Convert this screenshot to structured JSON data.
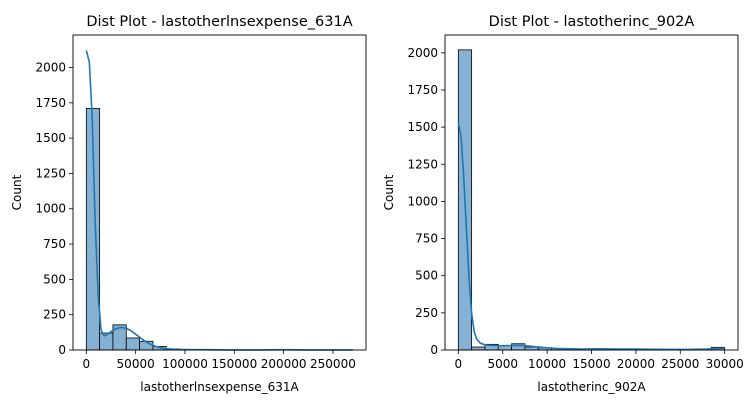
{
  "chart_data": [
    {
      "type": "histogram",
      "title": "Dist Plot - lastotherlnsexpense_631A",
      "xlabel": "lastotherlnsexpense_631A",
      "ylabel": "Count",
      "xlim": [
        -13500,
        283500
      ],
      "ylim": [
        0,
        2230
      ],
      "xticks": [
        0,
        50000,
        100000,
        150000,
        200000,
        250000
      ],
      "yticks": [
        0,
        250,
        500,
        750,
        1000,
        1250,
        1500,
        1750,
        2000
      ],
      "bins": [
        {
          "x0": 0,
          "x1": 13500,
          "count": 1710
        },
        {
          "x0": 13500,
          "x1": 27000,
          "count": 120
        },
        {
          "x0": 27000,
          "x1": 40500,
          "count": 178
        },
        {
          "x0": 40500,
          "x1": 54000,
          "count": 85
        },
        {
          "x0": 54000,
          "x1": 67500,
          "count": 62
        },
        {
          "x0": 67500,
          "x1": 81000,
          "count": 25
        },
        {
          "x0": 81000,
          "x1": 94500,
          "count": 8
        },
        {
          "x0": 94500,
          "x1": 108000,
          "count": 4
        },
        {
          "x0": 108000,
          "x1": 121500,
          "count": 2
        },
        {
          "x0": 121500,
          "x1": 135000,
          "count": 2
        },
        {
          "x0": 135000,
          "x1": 148500,
          "count": 1
        },
        {
          "x0": 148500,
          "x1": 162000,
          "count": 1
        },
        {
          "x0": 162000,
          "x1": 175500,
          "count": 1
        },
        {
          "x0": 175500,
          "x1": 189000,
          "count": 1
        },
        {
          "x0": 189000,
          "x1": 202500,
          "count": 2
        },
        {
          "x0": 202500,
          "x1": 216000,
          "count": 1
        },
        {
          "x0": 216000,
          "x1": 229500,
          "count": 1
        },
        {
          "x0": 229500,
          "x1": 243000,
          "count": 1
        },
        {
          "x0": 243000,
          "x1": 256500,
          "count": 1
        },
        {
          "x0": 256500,
          "x1": 270000,
          "count": 1
        }
      ],
      "kde": {
        "x": [
          0,
          3000,
          6000,
          9000,
          12000,
          15000,
          18000,
          21000,
          25000,
          30000,
          35000,
          40000,
          45000,
          50000,
          55000,
          60000,
          65000,
          70000,
          75000,
          80000,
          85000,
          90000,
          100000,
          110000,
          120000,
          140000,
          160000,
          180000,
          200000,
          220000,
          240000,
          270000
        ],
        "y": [
          2120,
          2040,
          1650,
          900,
          380,
          140,
          100,
          108,
          130,
          150,
          160,
          155,
          138,
          112,
          85,
          60,
          40,
          26,
          16,
          10,
          7,
          5,
          3,
          2,
          2,
          1,
          1,
          1,
          2,
          1,
          1,
          1
        ]
      },
      "bar_color": "#85b1d5",
      "line_color": "#1f77b4"
    },
    {
      "type": "histogram",
      "title": "Dist Plot - lastotherinc_902A",
      "xlabel": "lastotherinc_902A",
      "ylabel": "Count",
      "xlim": [
        -1500,
        31500
      ],
      "ylim": [
        0,
        2120
      ],
      "xticks": [
        0,
        5000,
        10000,
        15000,
        20000,
        25000,
        30000
      ],
      "yticks": [
        0,
        250,
        500,
        750,
        1000,
        1250,
        1500,
        1750,
        2000
      ],
      "bins": [
        {
          "x0": 0,
          "x1": 1500,
          "count": 2020
        },
        {
          "x0": 1500,
          "x1": 3000,
          "count": 20
        },
        {
          "x0": 3000,
          "x1": 4500,
          "count": 38
        },
        {
          "x0": 4500,
          "x1": 6000,
          "count": 30
        },
        {
          "x0": 6000,
          "x1": 7500,
          "count": 42
        },
        {
          "x0": 7500,
          "x1": 9000,
          "count": 20
        },
        {
          "x0": 9000,
          "x1": 10500,
          "count": 15
        },
        {
          "x0": 10500,
          "x1": 12000,
          "count": 10
        },
        {
          "x0": 12000,
          "x1": 13500,
          "count": 6
        },
        {
          "x0": 13500,
          "x1": 15000,
          "count": 6
        },
        {
          "x0": 15000,
          "x1": 16500,
          "count": 8
        },
        {
          "x0": 16500,
          "x1": 18000,
          "count": 5
        },
        {
          "x0": 18000,
          "x1": 19500,
          "count": 4
        },
        {
          "x0": 19500,
          "x1": 21000,
          "count": 6
        },
        {
          "x0": 21000,
          "x1": 22500,
          "count": 3
        },
        {
          "x0": 22500,
          "x1": 24000,
          "count": 3
        },
        {
          "x0": 24000,
          "x1": 25500,
          "count": 3
        },
        {
          "x0": 25500,
          "x1": 27000,
          "count": 2
        },
        {
          "x0": 27000,
          "x1": 28500,
          "count": 2
        },
        {
          "x0": 28500,
          "x1": 30000,
          "count": 18
        }
      ],
      "kde": {
        "x": [
          0,
          300,
          600,
          900,
          1200,
          1500,
          1800,
          2100,
          2500,
          3000,
          3500,
          4000,
          5000,
          6000,
          7000,
          8000,
          9000,
          10000,
          11000,
          12000,
          14000,
          16000,
          18000,
          20000,
          22000,
          24000,
          26000,
          28000,
          29000,
          30000
        ],
        "y": [
          1530,
          1440,
          1180,
          830,
          490,
          250,
          120,
          70,
          45,
          35,
          32,
          30,
          28,
          30,
          31,
          26,
          20,
          15,
          11,
          9,
          7,
          8,
          6,
          7,
          5,
          4,
          4,
          6,
          10,
          12
        ]
      },
      "bar_color": "#85b1d5",
      "line_color": "#1f77b4"
    }
  ]
}
